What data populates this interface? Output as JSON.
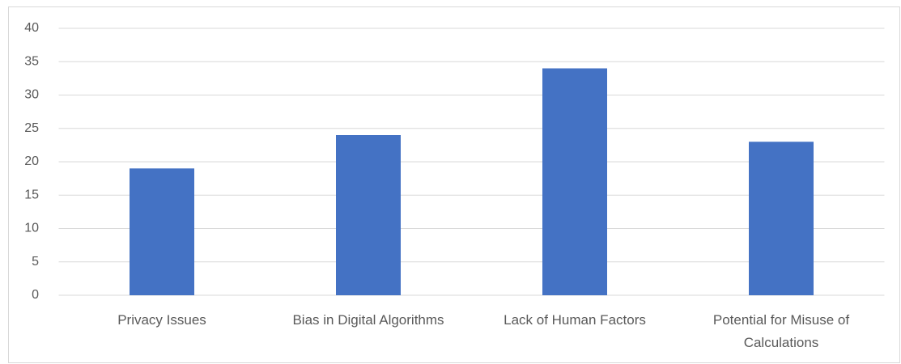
{
  "chart_data": {
    "type": "bar",
    "categories": [
      "Privacy Issues",
      "Bias in Digital Algorithms",
      "Lack of Human Factors",
      "Potential for Misuse of Calculations"
    ],
    "values": [
      19,
      24,
      34,
      23
    ],
    "color": "#4472c4",
    "ylim": [
      0,
      40
    ],
    "yticks": [
      0,
      5,
      10,
      15,
      20,
      25,
      30,
      35,
      40
    ],
    "grid": true
  }
}
